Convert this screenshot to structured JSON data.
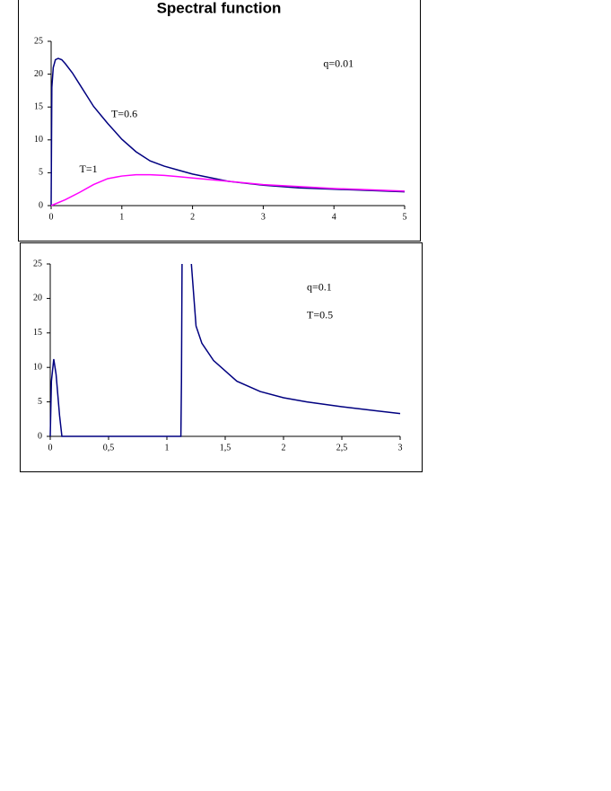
{
  "chart_data": [
    {
      "type": "line",
      "title": "Spectral function",
      "xlim": [
        0,
        5
      ],
      "xticks": [
        0,
        1,
        2,
        3,
        4,
        5
      ],
      "ylim": [
        0,
        25
      ],
      "yticks": [
        0,
        5,
        10,
        15,
        20,
        25
      ],
      "grid": false,
      "annotations": [
        "q=0.01",
        "T=0.6",
        "T=1"
      ],
      "series": [
        {
          "color": "#000080",
          "x": [
            0,
            0.01,
            0.03,
            0.06,
            0.1,
            0.15,
            0.2,
            0.3,
            0.4,
            0.5,
            0.6,
            0.7,
            0.8,
            0.9,
            1.0,
            1.2,
            1.4,
            1.6,
            1.8,
            2.0,
            2.5,
            3.0,
            3.5,
            4.0,
            4.5,
            5.0
          ],
          "values": [
            0,
            18,
            21,
            22.2,
            22.4,
            22.2,
            21.6,
            20.2,
            18.5,
            16.8,
            15.1,
            13.8,
            12.5,
            11.3,
            10.1,
            8.2,
            6.8,
            6.0,
            5.4,
            4.8,
            3.7,
            3.1,
            2.7,
            2.5,
            2.3,
            2.1
          ]
        },
        {
          "color": "#ff00ff",
          "x": [
            0,
            0.2,
            0.4,
            0.6,
            0.8,
            1.0,
            1.2,
            1.4,
            1.6,
            1.8,
            2.0,
            2.5,
            3.0,
            3.5,
            4.0,
            4.5,
            5.0
          ],
          "values": [
            0,
            0.9,
            2.0,
            3.2,
            4.1,
            4.5,
            4.7,
            4.7,
            4.6,
            4.4,
            4.2,
            3.7,
            3.2,
            2.9,
            2.6,
            2.4,
            2.2
          ]
        }
      ]
    },
    {
      "type": "line",
      "xlim": [
        0,
        3
      ],
      "xticks": [
        0,
        {
          "value": 0.5,
          "label": "0,5"
        },
        1,
        {
          "value": 1.5,
          "label": "1,5"
        },
        2,
        {
          "value": 2.5,
          "label": "2,5"
        },
        3
      ],
      "ylim": [
        0,
        25
      ],
      "yticks": [
        0,
        5,
        10,
        15,
        20,
        25
      ],
      "grid": false,
      "annotations": [
        "q=0.1",
        "T=0.5"
      ],
      "series": [
        {
          "color": "#000080",
          "x": [
            0,
            0.01,
            0.03,
            0.05,
            0.08,
            0.1,
            1.12,
            1.125,
            1.13,
            1.17,
            1.21,
            1.25,
            1.3,
            1.4,
            1.5,
            1.6,
            1.8,
            2.0,
            2.2,
            2.5,
            2.8,
            3.0
          ],
          "values": [
            0,
            8,
            11.2,
            9,
            3,
            0,
            0,
            8,
            25,
            null,
            25,
            16,
            13.5,
            11,
            9.5,
            8,
            6.5,
            5.6,
            5,
            4.3,
            3.7,
            3.3
          ]
        }
      ]
    }
  ]
}
